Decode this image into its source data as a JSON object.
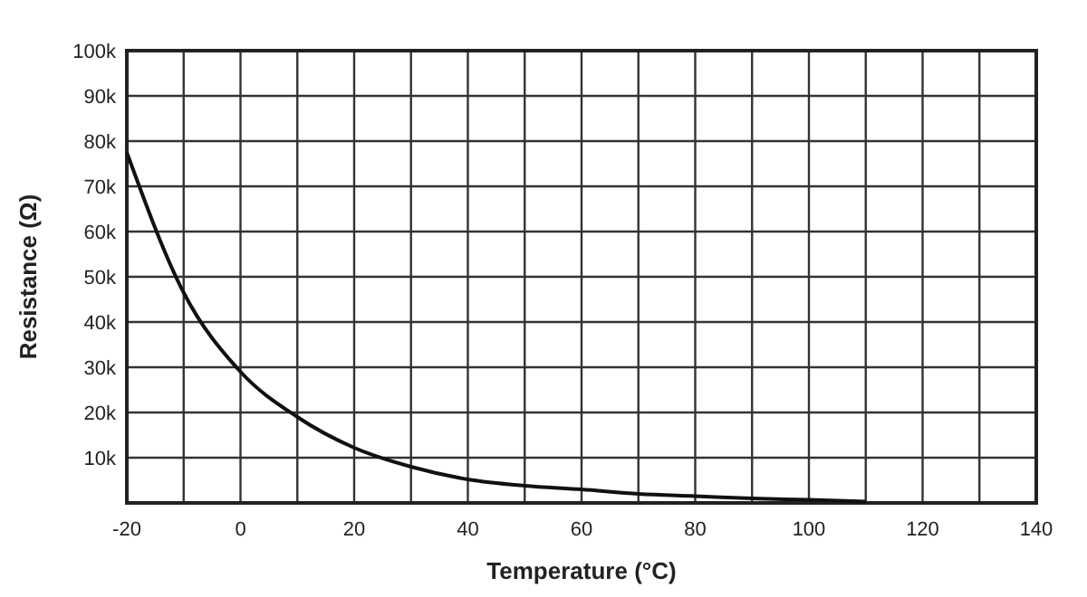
{
  "chart_data": {
    "type": "line",
    "xlabel": "Temperature (°C)",
    "ylabel": "Resistance (Ω)",
    "x": [
      -20,
      -10,
      0,
      10,
      20,
      30,
      40,
      50,
      60,
      70,
      80,
      90,
      100,
      110
    ],
    "series": [
      {
        "color": "#111111",
        "values": [
          77.5,
          46.5,
          29,
          19,
          12.2,
          8,
          5.2,
          3.8,
          3,
          2,
          1.5,
          1,
          0.7,
          0.3
        ]
      }
    ],
    "xlim": [
      -20,
      140
    ],
    "xticks": [
      -20,
      {
        "value": -10,
        "label": null
      },
      0,
      {
        "value": 10,
        "label": null
      },
      20,
      {
        "value": 30,
        "label": null
      },
      40,
      {
        "value": 50,
        "label": null
      },
      60,
      {
        "value": 70,
        "label": null
      },
      80,
      {
        "value": 90,
        "label": null
      },
      100,
      {
        "value": 110,
        "label": null
      },
      120,
      {
        "value": 130,
        "label": null
      },
      140
    ],
    "ylim": [
      0,
      100
    ],
    "yticks": [
      {
        "value": 0,
        "label": null
      },
      {
        "value": 10,
        "label": "10k"
      },
      {
        "value": 20,
        "label": "20k"
      },
      {
        "value": 30,
        "label": "30k"
      },
      {
        "value": 40,
        "label": "40k"
      },
      {
        "value": 50,
        "label": "50k"
      },
      {
        "value": 60,
        "label": "60k"
      },
      {
        "value": 70,
        "label": "70k"
      },
      {
        "value": 80,
        "label": "80k"
      },
      {
        "value": 90,
        "label": "90k"
      },
      {
        "value": 100,
        "label": "100k"
      }
    ],
    "grid": true,
    "marker": "none",
    "line_style": "solid"
  }
}
